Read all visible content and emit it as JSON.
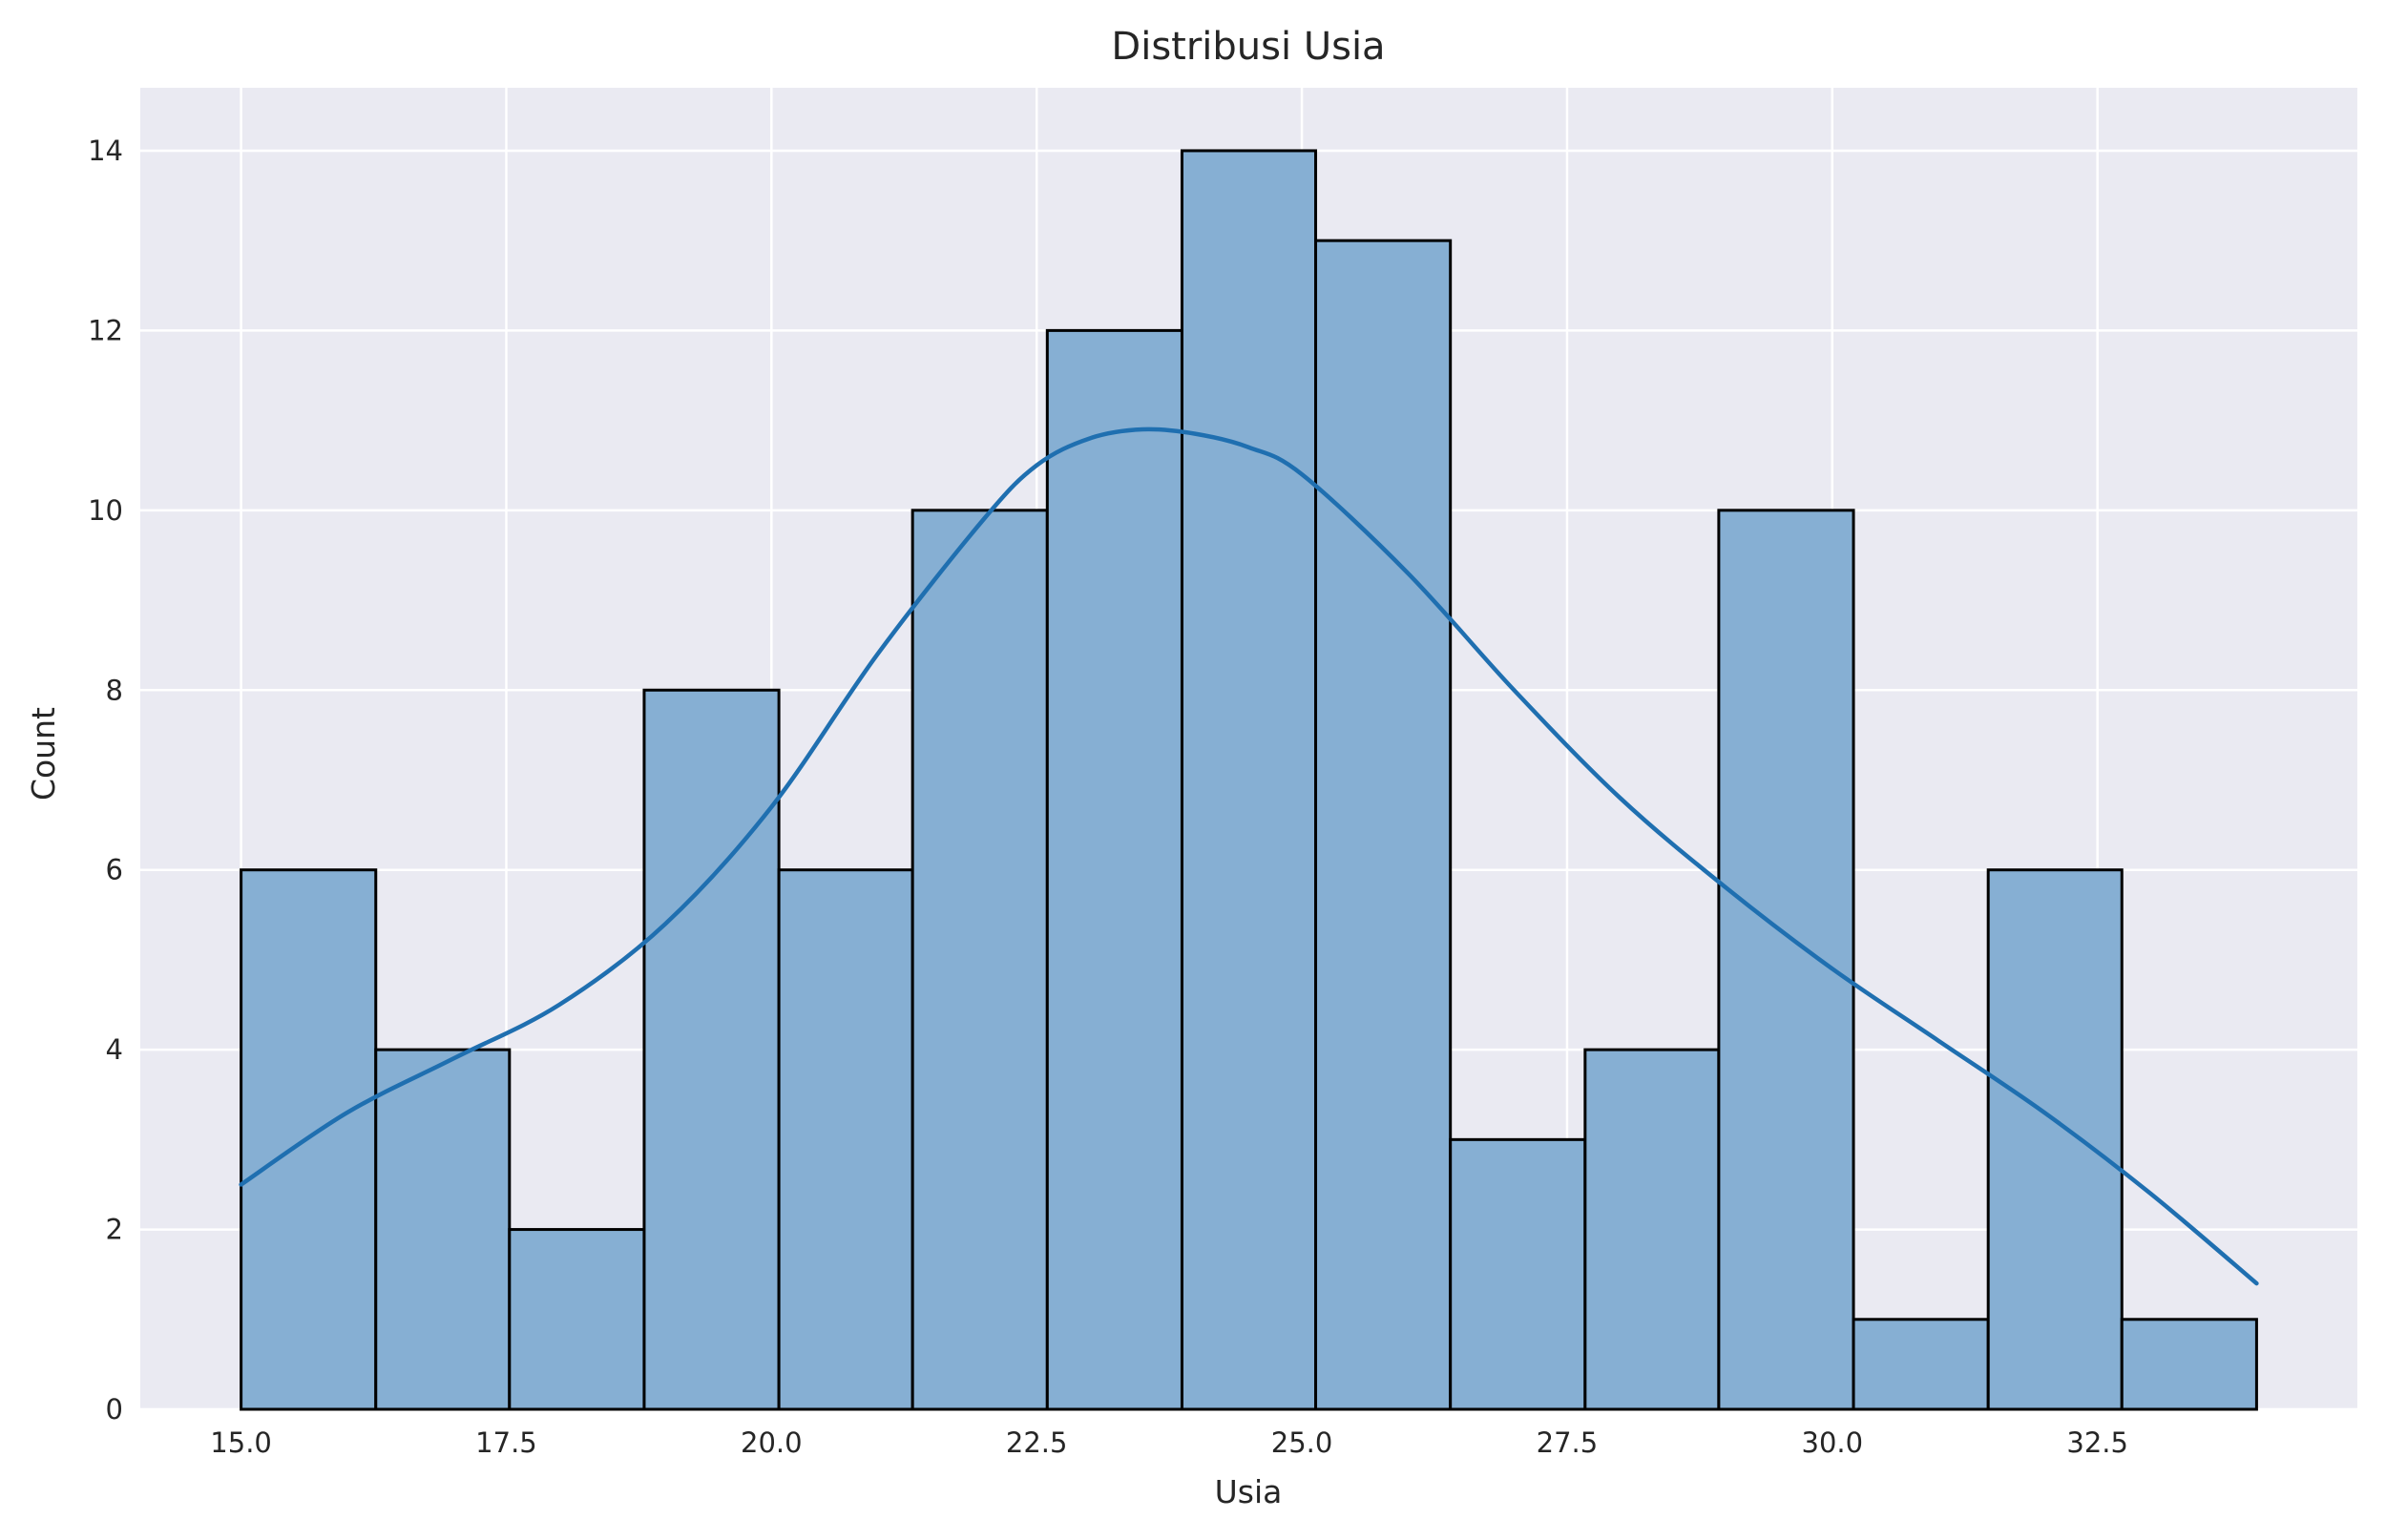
{
  "chart_data": {
    "type": "bar",
    "title": "Distribusi Usia",
    "xlabel": "Usia",
    "ylabel": "Count",
    "xlim": [
      14.05,
      34.95
    ],
    "ylim": [
      0,
      14.7
    ],
    "x_ticks": [
      15.0,
      17.5,
      20.0,
      22.5,
      25.0,
      27.5,
      30.0,
      32.5
    ],
    "x_tick_labels": [
      "15.0",
      "17.5",
      "20.0",
      "22.5",
      "25.0",
      "27.5",
      "30.0",
      "32.5"
    ],
    "y_ticks": [
      0,
      2,
      4,
      6,
      8,
      10,
      12,
      14
    ],
    "y_tick_labels": [
      "0",
      "2",
      "4",
      "6",
      "8",
      "10",
      "12",
      "14"
    ],
    "grid": true,
    "bins": [
      {
        "x0": 15.0,
        "x1": 16.27,
        "count": 6
      },
      {
        "x0": 16.27,
        "x1": 17.53,
        "count": 4
      },
      {
        "x0": 17.53,
        "x1": 18.8,
        "count": 2
      },
      {
        "x0": 18.8,
        "x1": 20.07,
        "count": 8
      },
      {
        "x0": 20.07,
        "x1": 21.33,
        "count": 6
      },
      {
        "x0": 21.33,
        "x1": 22.6,
        "count": 10
      },
      {
        "x0": 22.6,
        "x1": 23.87,
        "count": 12
      },
      {
        "x0": 23.87,
        "x1": 25.13,
        "count": 14
      },
      {
        "x0": 25.13,
        "x1": 26.4,
        "count": 13
      },
      {
        "x0": 26.4,
        "x1": 27.67,
        "count": 3
      },
      {
        "x0": 27.67,
        "x1": 28.93,
        "count": 4
      },
      {
        "x0": 28.93,
        "x1": 30.2,
        "count": 10
      },
      {
        "x0": 30.2,
        "x1": 31.47,
        "count": 1
      },
      {
        "x0": 31.47,
        "x1": 32.73,
        "count": 6
      },
      {
        "x0": 32.73,
        "x1": 34.0,
        "count": 1
      }
    ],
    "kde": {
      "x": [
        15.0,
        16.0,
        17.0,
        18.0,
        19.0,
        20.0,
        21.0,
        22.0,
        22.5,
        23.0,
        23.5,
        24.0,
        24.5,
        25.0,
        26.0,
        27.0,
        28.0,
        29.0,
        30.0,
        31.0,
        32.0,
        33.0,
        34.0
      ],
      "y": [
        2.5,
        3.3,
        3.9,
        4.5,
        5.4,
        6.7,
        8.4,
        9.9,
        10.5,
        10.8,
        10.9,
        10.85,
        10.7,
        10.4,
        9.3,
        8.0,
        6.8,
        5.8,
        4.9,
        4.1,
        3.3,
        2.4,
        1.4
      ]
    },
    "colors": {
      "bar_fill": "#86afd3",
      "bar_edge": "#000000",
      "kde_line": "#1f6fb0",
      "plot_bg": "#eaeaf2",
      "grid": "#ffffff"
    }
  }
}
